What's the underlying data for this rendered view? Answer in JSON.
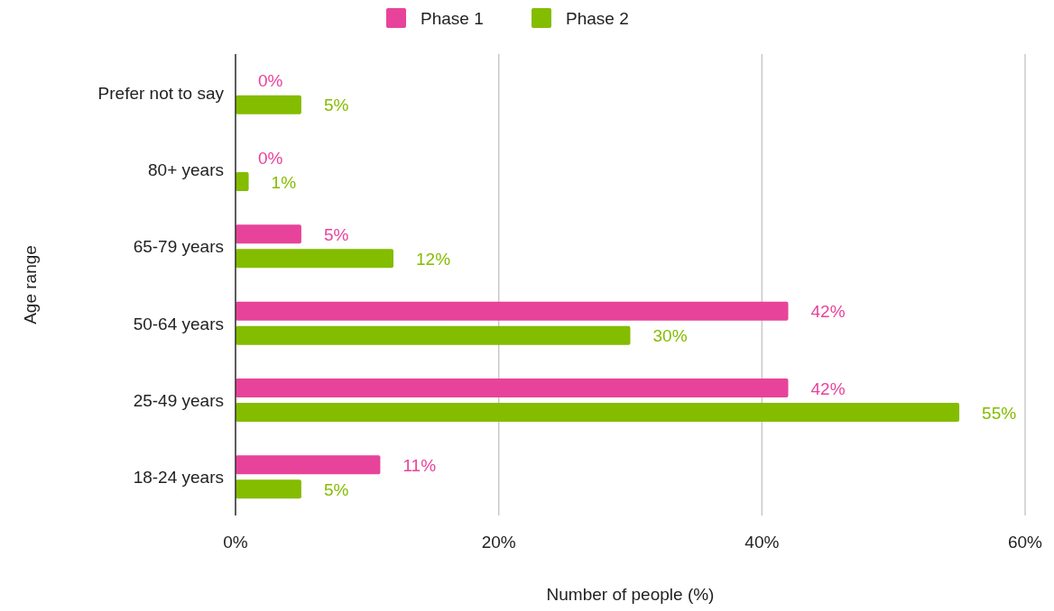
{
  "chart_data": {
    "type": "bar",
    "orientation": "horizontal",
    "xlabel": "Number of people (%)",
    "ylabel": "Age range",
    "categories": [
      "Prefer not to say",
      "80+ years",
      "65-79 years",
      "50-64 years",
      "25-49 years",
      "18-24 years"
    ],
    "series": [
      {
        "name": "Phase 1",
        "color": "#e8439a",
        "values": [
          0,
          0,
          5,
          42,
          42,
          11
        ],
        "value_labels": [
          "0%",
          "0%",
          "5%",
          "42%",
          "42%",
          "11%"
        ]
      },
      {
        "name": "Phase 2",
        "color": "#84bc00",
        "values": [
          5,
          1,
          12,
          30,
          55,
          5
        ],
        "value_labels": [
          "5%",
          "1%",
          "12%",
          "30%",
          "55%",
          "5%"
        ]
      }
    ],
    "xlim": [
      0,
      60
    ],
    "xticks": [
      {
        "value": 0,
        "label": "0%"
      },
      {
        "value": 20,
        "label": "20%"
      },
      {
        "value": 40,
        "label": "40%"
      },
      {
        "value": 60,
        "label": "60%"
      }
    ],
    "grid": "x",
    "legend": "top"
  }
}
